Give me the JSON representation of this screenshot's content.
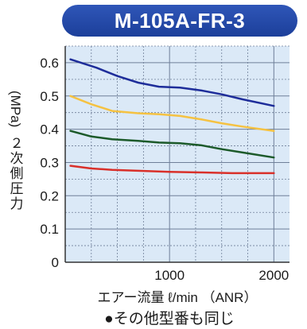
{
  "title": "M-105A-FR-3",
  "note": "●その他型番も同じ",
  "colors": {
    "title_bg": "#1f44a3",
    "plot_bg": "#dbe9f7",
    "grid": "#6f7f99"
  },
  "chart_data": {
    "type": "line",
    "xlabel": "エアー流量 ℓ/min （ANR）",
    "ylabel": "２次側圧力",
    "ylabel_unit": "(MPa)",
    "xlim": [
      0,
      2150
    ],
    "ylim": [
      0,
      0.65
    ],
    "x_ticks": [
      1000,
      2000
    ],
    "x_tick_labels": [
      "1000",
      "2000"
    ],
    "y_ticks": [
      0,
      0.1,
      0.2,
      0.3,
      0.4,
      0.5,
      0.6
    ],
    "y_tick_labels": [
      "0",
      "0.1",
      "0.2",
      "0.3",
      "0.4",
      "0.5",
      "0.6"
    ],
    "grid": true,
    "series": [
      {
        "color": "#1e2d9a",
        "points": [
          [
            50,
            0.61
          ],
          [
            300,
            0.585
          ],
          [
            500,
            0.56
          ],
          [
            700,
            0.54
          ],
          [
            900,
            0.528
          ],
          [
            1100,
            0.525
          ],
          [
            1300,
            0.517
          ],
          [
            1500,
            0.505
          ],
          [
            1700,
            0.49
          ],
          [
            2000,
            0.47
          ]
        ]
      },
      {
        "color": "#f5c242",
        "points": [
          [
            50,
            0.5
          ],
          [
            250,
            0.475
          ],
          [
            450,
            0.455
          ],
          [
            700,
            0.448
          ],
          [
            900,
            0.445
          ],
          [
            1100,
            0.44
          ],
          [
            1300,
            0.43
          ],
          [
            1500,
            0.418
          ],
          [
            1700,
            0.408
          ],
          [
            2000,
            0.395
          ]
        ]
      },
      {
        "color": "#1c5a2a",
        "points": [
          [
            50,
            0.395
          ],
          [
            250,
            0.378
          ],
          [
            450,
            0.37
          ],
          [
            700,
            0.365
          ],
          [
            900,
            0.36
          ],
          [
            1100,
            0.358
          ],
          [
            1300,
            0.352
          ],
          [
            1500,
            0.34
          ],
          [
            1700,
            0.33
          ],
          [
            2000,
            0.315
          ]
        ]
      },
      {
        "color": "#d9302a",
        "points": [
          [
            50,
            0.29
          ],
          [
            250,
            0.282
          ],
          [
            450,
            0.278
          ],
          [
            700,
            0.275
          ],
          [
            1000,
            0.272
          ],
          [
            1300,
            0.27
          ],
          [
            1600,
            0.268
          ],
          [
            2000,
            0.268
          ]
        ]
      }
    ]
  }
}
